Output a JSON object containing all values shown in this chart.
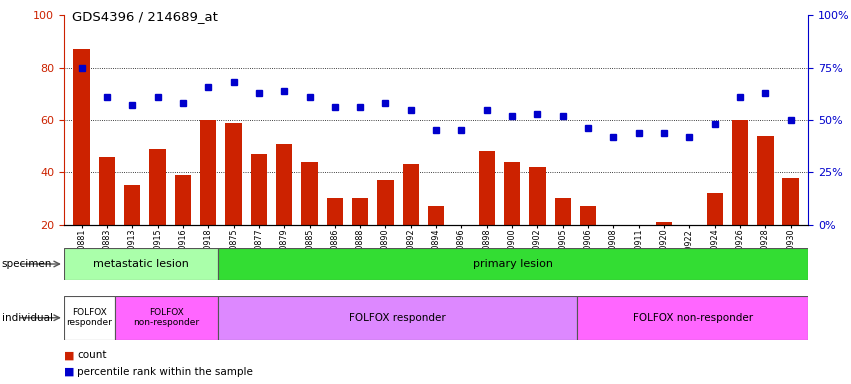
{
  "title": "GDS4396 / 214689_at",
  "samples": [
    "GSM710881",
    "GSM710883",
    "GSM710913",
    "GSM710915",
    "GSM710916",
    "GSM710918",
    "GSM710875",
    "GSM710877",
    "GSM710879",
    "GSM710885",
    "GSM710886",
    "GSM710888",
    "GSM710890",
    "GSM710892",
    "GSM710894",
    "GSM710896",
    "GSM710898",
    "GSM710900",
    "GSM710902",
    "GSM710905",
    "GSM710906",
    "GSM710908",
    "GSM710911",
    "GSM710920",
    "GSM710922",
    "GSM710924",
    "GSM710926",
    "GSM710928",
    "GSM710930"
  ],
  "counts": [
    87,
    46,
    35,
    49,
    39,
    60,
    59,
    47,
    51,
    44,
    30,
    30,
    37,
    43,
    27,
    20,
    48,
    44,
    42,
    30,
    27,
    13,
    19,
    21,
    17,
    32,
    60,
    54,
    38
  ],
  "percentiles": [
    75,
    61,
    57,
    61,
    58,
    66,
    68,
    63,
    64,
    61,
    56,
    56,
    58,
    55,
    45,
    45,
    55,
    52,
    53,
    52,
    46,
    42,
    44,
    44,
    42,
    48,
    61,
    63,
    50
  ],
  "bar_color": "#cc2200",
  "dot_color": "#0000cc",
  "ylim_left": [
    20,
    100
  ],
  "ylim_right": [
    0,
    100
  ],
  "yticks_left": [
    20,
    40,
    60,
    80,
    100
  ],
  "yticks_right": [
    0,
    25,
    50,
    75,
    100
  ],
  "grid_values": [
    40,
    60,
    80
  ],
  "specimen_groups": [
    {
      "label": "metastatic lesion",
      "start": 0,
      "end": 6,
      "color": "#aaffaa"
    },
    {
      "label": "primary lesion",
      "start": 6,
      "end": 29,
      "color": "#33dd33"
    }
  ],
  "individual_groups": [
    {
      "label": "FOLFOX\nresponder",
      "start": 0,
      "end": 2,
      "color": "#ffffff"
    },
    {
      "label": "FOLFOX\nnon-responder",
      "start": 2,
      "end": 6,
      "color": "#ff66ff"
    },
    {
      "label": "FOLFOX responder",
      "start": 6,
      "end": 20,
      "color": "#dd88ff"
    },
    {
      "label": "FOLFOX non-responder",
      "start": 20,
      "end": 29,
      "color": "#ff66ff"
    }
  ],
  "legend": [
    {
      "label": "count",
      "color": "#cc2200"
    },
    {
      "label": "percentile rank within the sample",
      "color": "#0000cc"
    }
  ],
  "fig_width": 8.51,
  "fig_height": 3.84,
  "dpi": 100
}
